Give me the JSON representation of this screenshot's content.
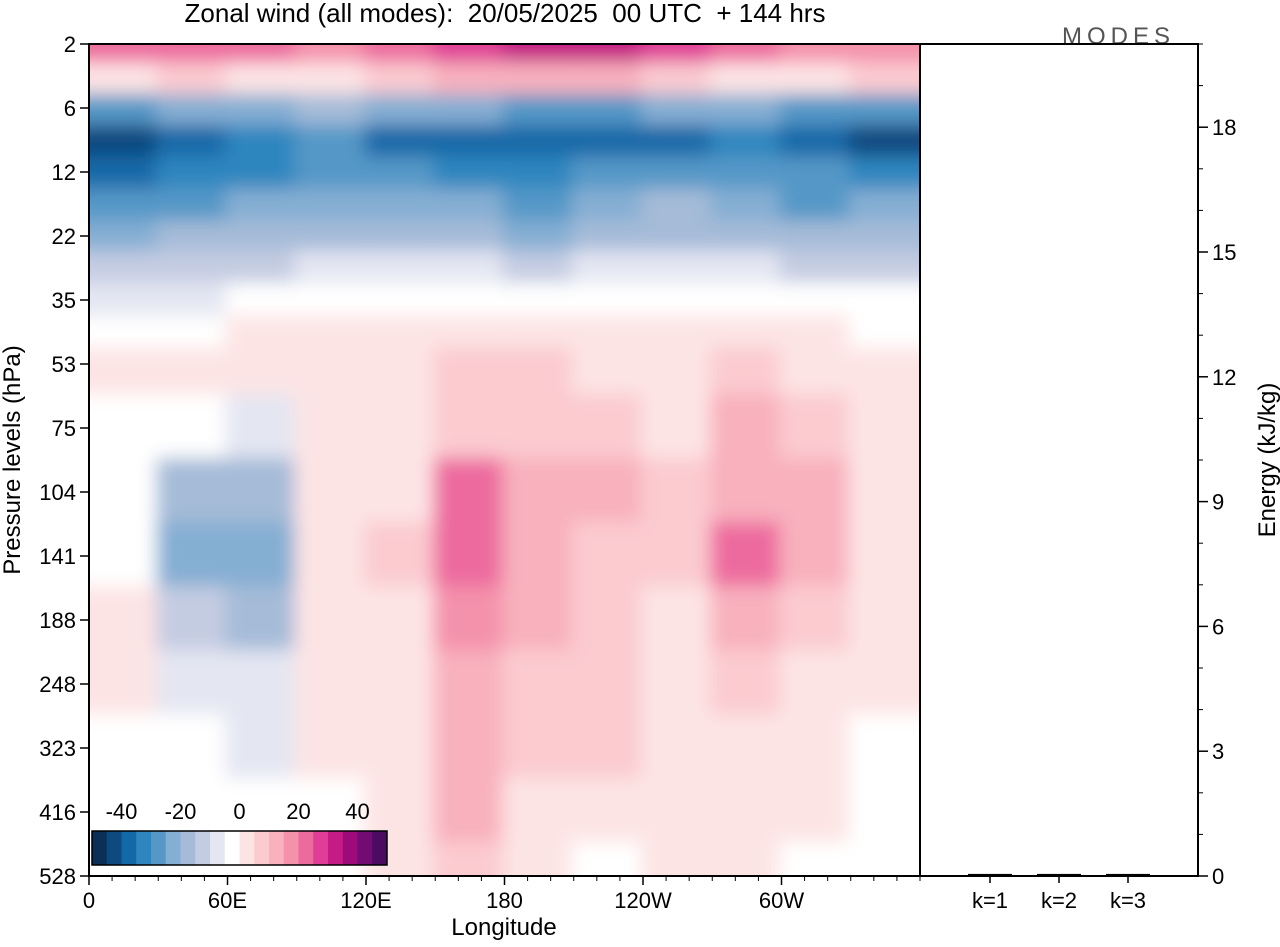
{
  "header": {
    "title": "Zonal wind (all modes):  20/05/2025  00 UTC  + 144 hrs",
    "logo_text": "MODES"
  },
  "chart_data": [
    {
      "type": "heatmap",
      "title": "Zonal wind (all modes):  20/05/2025  00 UTC  + 144 hrs",
      "xlabel": "Longitude",
      "ylabel": "Pressure levels (hPa)",
      "x_ticks": [
        "0",
        "60E",
        "120E",
        "180",
        "120W",
        "60W"
      ],
      "x_tick_values": [
        0,
        60,
        120,
        180,
        240,
        300
      ],
      "xlim": [
        0,
        360
      ],
      "y_ticks": [
        "2",
        "6",
        "12",
        "22",
        "35",
        "53",
        "75",
        "104",
        "141",
        "188",
        "248",
        "323",
        "416",
        "528"
      ],
      "y_scale": "level-index",
      "colorbar": {
        "tick_labels": [
          "-40",
          "-20",
          "0",
          "20",
          "40"
        ],
        "tick_values": [
          -40,
          -20,
          0,
          20,
          40
        ],
        "range": [
          -50,
          50
        ],
        "placement": "bottom-left",
        "colors": [
          "#0b2f57",
          "#0d4a80",
          "#1369a8",
          "#2e86bf",
          "#5598c7",
          "#85aed3",
          "#a5bbd8",
          "#c4cce2",
          "#e4e6f2",
          "#ffffff",
          "#fde4e4",
          "#fbcbd0",
          "#f8b1bd",
          "#f491ab",
          "#ed6a9f",
          "#e03d96",
          "#c51b84",
          "#9e0a7a",
          "#720b73",
          "#4b0b63"
        ]
      },
      "bands": [
        {
          "level": 2,
          "values": [
            22,
            24,
            20,
            18,
            22,
            26,
            30,
            34,
            28,
            22,
            18,
            16
          ]
        },
        {
          "level": 4,
          "values": [
            4,
            6,
            4,
            2,
            8,
            10,
            12,
            10,
            6,
            4,
            4,
            6
          ]
        },
        {
          "level": 6,
          "values": [
            -26,
            -24,
            -22,
            -20,
            -22,
            -24,
            -26,
            -26,
            -24,
            -24,
            -26,
            -28
          ]
        },
        {
          "level": 9,
          "values": [
            -42,
            -38,
            -34,
            -30,
            -36,
            -40,
            -40,
            -38,
            -36,
            -34,
            -36,
            -42
          ]
        },
        {
          "level": 12,
          "values": [
            -36,
            -34,
            -32,
            -28,
            -30,
            -34,
            -34,
            -30,
            -26,
            -26,
            -28,
            -32
          ]
        },
        {
          "level": 17,
          "values": [
            -28,
            -26,
            -24,
            -22,
            -22,
            -24,
            -28,
            -24,
            -20,
            -22,
            -26,
            -24
          ]
        },
        {
          "level": 22,
          "values": [
            -22,
            -20,
            -18,
            -16,
            -16,
            -18,
            -22,
            -18,
            -16,
            -16,
            -20,
            -18
          ]
        },
        {
          "level": 28,
          "values": [
            -14,
            -12,
            -12,
            -10,
            -10,
            -10,
            -12,
            -10,
            -10,
            -10,
            -12,
            -12
          ]
        },
        {
          "level": 35,
          "values": [
            -6,
            -6,
            -5,
            -5,
            -4,
            -4,
            -5,
            -4,
            -4,
            -4,
            -5,
            -5
          ]
        },
        {
          "level": 44,
          "values": [
            -2,
            -1,
            0,
            1,
            1,
            1,
            1,
            1,
            1,
            1,
            0,
            -1
          ]
        },
        {
          "level": 53,
          "values": [
            0,
            0,
            1,
            4,
            4,
            6,
            5,
            4,
            4,
            6,
            4,
            2
          ]
        },
        {
          "level": 75,
          "values": [
            -2,
            -4,
            -6,
            2,
            4,
            8,
            6,
            6,
            4,
            10,
            8,
            0
          ]
        },
        {
          "level": 104,
          "values": [
            -2,
            -16,
            -20,
            4,
            4,
            22,
            12,
            10,
            6,
            14,
            12,
            0
          ]
        },
        {
          "level": 141,
          "values": [
            -2,
            -22,
            -24,
            2,
            6,
            22,
            10,
            8,
            6,
            20,
            12,
            0
          ]
        },
        {
          "level": 188,
          "values": [
            0,
            -14,
            -16,
            2,
            4,
            16,
            10,
            8,
            4,
            14,
            6,
            0
          ]
        },
        {
          "level": 248,
          "values": [
            0,
            -6,
            -8,
            2,
            4,
            14,
            8,
            6,
            4,
            8,
            4,
            0
          ]
        },
        {
          "level": 323,
          "values": [
            -2,
            -4,
            -6,
            0,
            4,
            12,
            6,
            6,
            4,
            4,
            2,
            -2
          ]
        },
        {
          "level": 416,
          "values": [
            -2,
            -2,
            -4,
            -2,
            4,
            10,
            4,
            2,
            2,
            2,
            0,
            -4
          ]
        },
        {
          "level": 528,
          "values": [
            -2,
            -2,
            -2,
            -4,
            4,
            6,
            2,
            -2,
            2,
            0,
            -2,
            -4
          ]
        }
      ],
      "band_longitudes": [
        0,
        30,
        60,
        90,
        120,
        150,
        180,
        210,
        240,
        270,
        300,
        330
      ]
    },
    {
      "type": "bar",
      "ylabel": "Energy (kJ/kg)",
      "categories": [
        "k=1",
        "k=2",
        "k=3"
      ],
      "values": [
        0.05,
        0.05,
        0.05
      ],
      "ylim": [
        0,
        20
      ],
      "y_ticks": [
        "0",
        "3",
        "6",
        "9",
        "12",
        "15",
        "18"
      ],
      "y_tick_values": [
        0,
        3,
        6,
        9,
        12,
        15,
        18
      ],
      "color": "#000000"
    }
  ]
}
